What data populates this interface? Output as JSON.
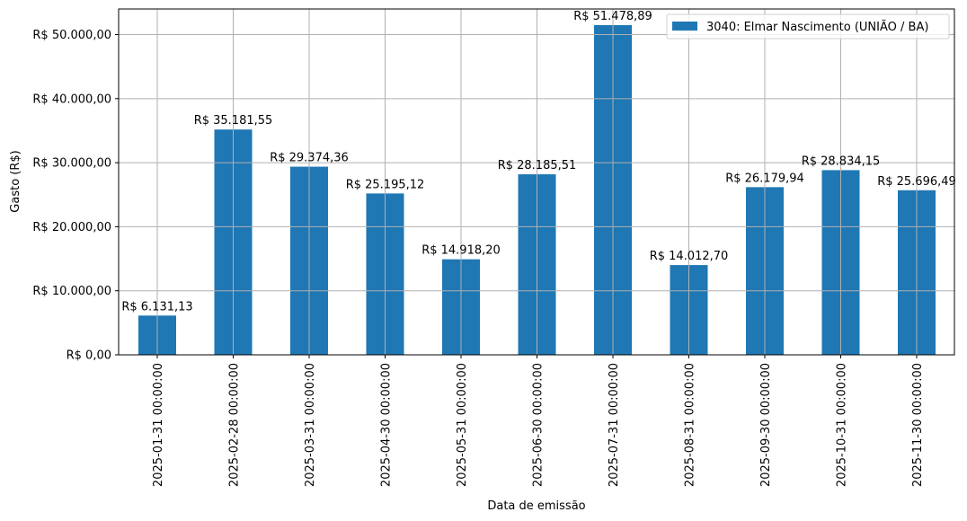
{
  "chart_data": {
    "type": "bar",
    "title": "",
    "xlabel": "Data de emissão",
    "ylabel": "Gasto (R$)",
    "ylim": [
      0,
      54000
    ],
    "grid": true,
    "legend_position": "upper right",
    "bar_color": "#1f77b4",
    "categories": [
      "2025-01-31 00:00:00",
      "2025-02-28 00:00:00",
      "2025-03-31 00:00:00",
      "2025-04-30 00:00:00",
      "2025-05-31 00:00:00",
      "2025-06-30 00:00:00",
      "2025-07-31 00:00:00",
      "2025-08-31 00:00:00",
      "2025-09-30 00:00:00",
      "2025-10-31 00:00:00",
      "2025-11-30 00:00:00"
    ],
    "series": [
      {
        "name": "3040: Elmar Nascimento (UNIÃO / BA)",
        "values": [
          6131.13,
          35181.55,
          29374.36,
          25195.12,
          14918.2,
          28185.51,
          51478.89,
          14012.7,
          26179.94,
          28834.15,
          25696.49
        ],
        "labels": [
          "R$ 6.131,13",
          "R$ 35.181,55",
          "R$ 29.374,36",
          "R$ 25.195,12",
          "R$ 14.918,20",
          "R$ 28.185,51",
          "R$ 51.478,89",
          "R$ 14.012,70",
          "R$ 26.179,94",
          "R$ 28.834,15",
          "R$ 25.696,49"
        ]
      }
    ],
    "yticks": [
      0,
      10000,
      20000,
      30000,
      40000,
      50000
    ],
    "ytick_labels": [
      "R$ 0,00",
      "R$ 10.000,00",
      "R$ 20.000,00",
      "R$ 30.000,00",
      "R$ 40.000,00",
      "R$ 50.000,00"
    ]
  }
}
